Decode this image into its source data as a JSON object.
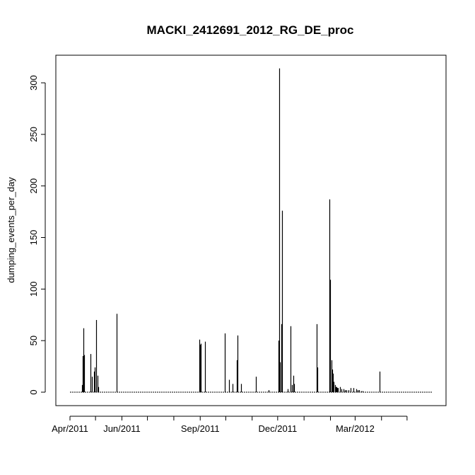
{
  "chart_data": {
    "type": "bar",
    "title": "MACKI_2412691_2012_RG_DE_proc",
    "xlabel": "",
    "ylabel": "dumping_events_per_day",
    "ylim": [
      0,
      320
    ],
    "yticks": [
      0,
      50,
      100,
      150,
      200,
      250,
      300
    ],
    "xlim": [
      "2011-04-01",
      "2012-05-31"
    ],
    "xticks_labeled": [
      {
        "date": "2011-04-01",
        "label": "Apr/2011"
      },
      {
        "date": "2011-06-01",
        "label": "Jun/2011"
      },
      {
        "date": "2011-09-01",
        "label": "Sep/2011"
      },
      {
        "date": "2011-12-01",
        "label": "Dec/2011"
      },
      {
        "date": "2012-03-01",
        "label": "Mar/2012"
      }
    ],
    "xticks_unlabeled": [
      "2011-05-01",
      "2011-07-01",
      "2011-08-01",
      "2011-10-01",
      "2011-11-01",
      "2012-01-01",
      "2012-02-01",
      "2012-04-01",
      "2012-05-01"
    ],
    "grid": false,
    "series": [
      {
        "x": [
          "2011-04-15",
          "2011-04-16",
          "2011-04-17",
          "2011-04-18",
          "2011-04-25",
          "2011-04-27",
          "2011-04-29",
          "2011-04-30",
          "2011-05-02",
          "2011-05-03",
          "2011-05-04",
          "2011-05-26",
          "2011-08-31",
          "2011-09-01",
          "2011-09-02",
          "2011-09-07",
          "2011-09-30",
          "2011-10-05",
          "2011-10-09",
          "2011-10-14",
          "2011-10-15",
          "2011-10-19",
          "2011-11-05",
          "2011-11-20",
          "2011-12-02",
          "2011-12-03",
          "2011-12-04",
          "2011-12-05",
          "2011-12-06",
          "2011-12-13",
          "2011-12-16",
          "2011-12-18",
          "2011-12-19",
          "2011-12-20",
          "2012-01-16",
          "2012-01-17",
          "2012-01-31",
          "2012-02-01",
          "2012-02-02",
          "2012-02-03",
          "2012-02-04",
          "2012-02-05",
          "2012-02-06",
          "2012-02-07",
          "2012-02-08",
          "2012-02-09",
          "2012-02-10",
          "2012-02-12",
          "2012-02-14",
          "2012-02-16",
          "2012-02-18",
          "2012-02-20",
          "2012-02-22",
          "2012-02-25",
          "2012-02-28",
          "2012-03-02",
          "2012-03-04",
          "2012-03-06",
          "2012-03-08",
          "2012-03-10",
          "2012-03-30"
        ],
        "values": [
          7,
          35,
          62,
          36,
          37,
          15,
          20,
          24,
          70,
          16,
          5,
          76,
          51,
          46,
          47,
          49,
          57,
          12,
          8,
          31,
          55,
          8,
          15,
          2,
          50,
          314,
          29,
          66,
          176,
          3,
          64,
          7,
          16,
          8,
          66,
          24,
          187,
          109,
          31,
          22,
          18,
          10,
          7,
          5,
          5,
          4,
          4,
          5,
          3,
          3,
          2,
          2,
          2,
          4,
          4,
          3,
          2,
          2,
          1,
          1,
          20
        ]
      }
    ]
  }
}
